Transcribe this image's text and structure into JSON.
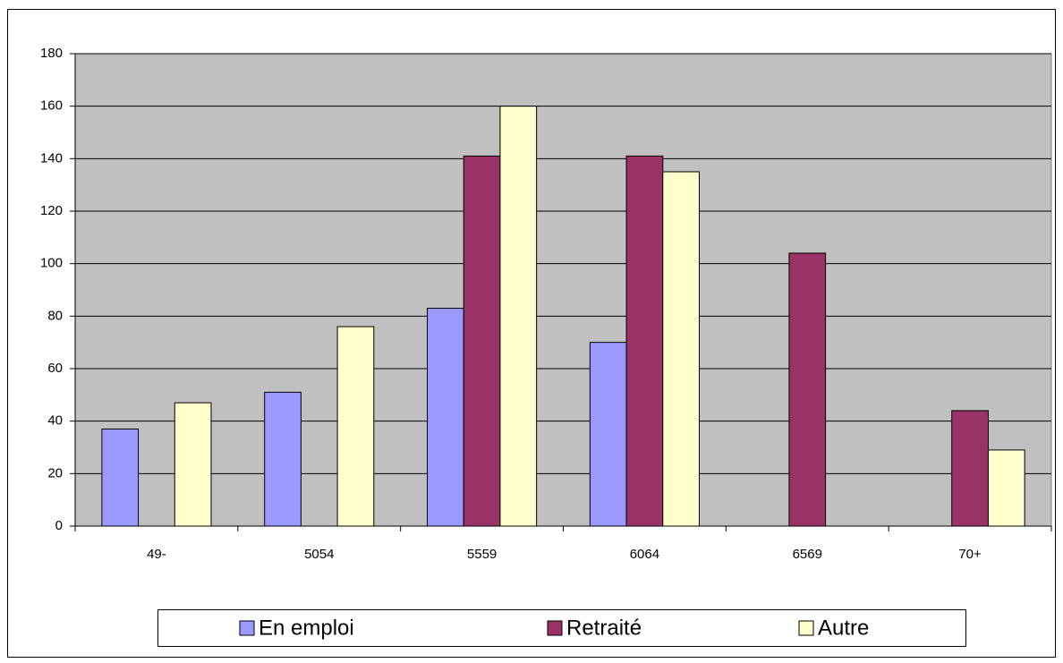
{
  "chart_data": {
    "type": "bar",
    "categories": [
      "49-",
      "5054",
      "5559",
      "6064",
      "6569",
      "70+"
    ],
    "series": [
      {
        "name": "En emploi",
        "color": "#9999ff",
        "values": [
          37,
          51,
          83,
          70,
          null,
          null
        ]
      },
      {
        "name": "Retraité",
        "color": "#993366",
        "values": [
          null,
          null,
          141,
          141,
          104,
          44
        ]
      },
      {
        "name": "Autre",
        "color": "#ffffcc",
        "values": [
          47,
          76,
          160,
          135,
          null,
          29
        ]
      }
    ],
    "ylim": [
      0,
      180
    ],
    "yticks": [
      0,
      20,
      40,
      60,
      80,
      100,
      120,
      140,
      160,
      180
    ],
    "grid": true,
    "legend": "bottom",
    "plot_background": "#c0c0c0"
  }
}
